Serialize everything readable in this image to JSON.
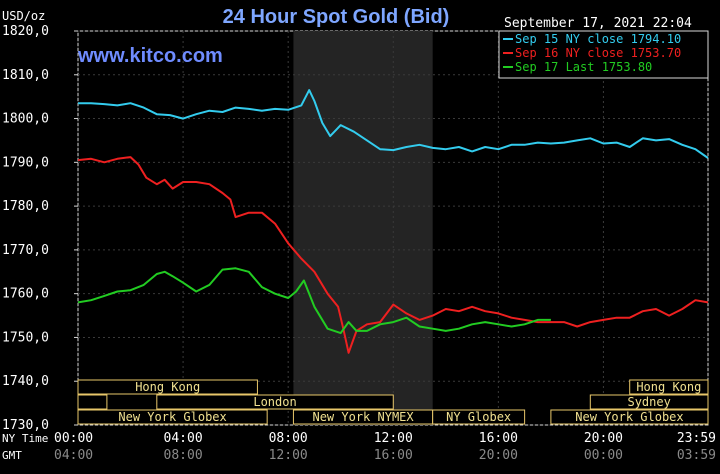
{
  "header": {
    "title": "24 Hour Spot Gold (Bid)",
    "unit": "USD/oz",
    "timestamp": "September 17, 2021 22:04",
    "watermark": "www.kitco.com"
  },
  "legend": [
    {
      "label": "Sep 15 NY close 1794.10",
      "color": "#33ccee"
    },
    {
      "label": "Sep 16 NY close 1753.70",
      "color": "#ee2020"
    },
    {
      "label": "Sep 17 Last 1753.80",
      "color": "#22cc22"
    }
  ],
  "markets": [
    {
      "label": "Hong Kong",
      "row": 0,
      "start": 0.0,
      "end": 6.83
    },
    {
      "label": "Hong Kong",
      "row": 0,
      "start": 21.0,
      "end": 23.98
    },
    {
      "label": "",
      "row": 1,
      "start": 0.0,
      "end": 1.1
    },
    {
      "label": "London",
      "row": 1,
      "start": 3.0,
      "end": 12.0
    },
    {
      "label": "Sydney",
      "row": 1,
      "start": 19.5,
      "end": 23.98
    },
    {
      "label": "New York Globex",
      "row": 2,
      "start": 0.0,
      "end": 7.2
    },
    {
      "label": "New York NYMEX",
      "row": 2,
      "start": 8.2,
      "end": 13.5
    },
    {
      "label": "NY Globex",
      "row": 2,
      "start": 13.5,
      "end": 17.0
    },
    {
      "label": "New York Globex",
      "row": 2,
      "start": 18.0,
      "end": 23.98
    }
  ],
  "axis": {
    "ny_label": "NY Time",
    "gmt_label": "GMT",
    "ny_ticks": [
      "00:00",
      "04:00",
      "08:00",
      "12:00",
      "16:00",
      "20:00",
      "23:59"
    ],
    "gmt_ticks": [
      "04:00",
      "08:00",
      "12:00",
      "16:00",
      "20:00",
      "00:00",
      "03:59"
    ]
  },
  "chart_data": {
    "type": "line",
    "title": "24 Hour Spot Gold (Bid)",
    "ylabel": "USD/oz",
    "xlabel": "NY Time",
    "xlim": [
      0,
      23.98
    ],
    "ylim": [
      1730,
      1820
    ],
    "y_ticks": [
      1730,
      1740,
      1750,
      1760,
      1770,
      1780,
      1790,
      1800,
      1810,
      1820
    ],
    "x_ticks": [
      0,
      4,
      8,
      12,
      16,
      20,
      23.98
    ],
    "shaded_region": [
      8.2,
      13.5
    ],
    "grid": true,
    "legend_position": "top-right",
    "series": [
      {
        "name": "Sep 15 NY close 1794.10",
        "x": [
          0,
          0.5,
          1,
          1.5,
          2,
          2.5,
          3,
          3.5,
          4,
          4.5,
          5,
          5.5,
          6,
          6.5,
          7,
          7.5,
          8,
          8.5,
          8.8,
          9,
          9.3,
          9.6,
          10,
          10.5,
          11,
          11.5,
          12,
          12.5,
          13,
          13.5,
          14,
          14.5,
          15,
          15.5,
          16,
          16.5,
          17,
          17.5,
          18,
          18.5,
          19,
          19.5,
          20,
          20.5,
          21,
          21.5,
          22,
          22.5,
          23,
          23.5,
          23.98
        ],
        "values": [
          1803.5,
          1803.5,
          1803.3,
          1803.0,
          1803.5,
          1802.5,
          1801.0,
          1800.8,
          1800.0,
          1801.0,
          1801.8,
          1801.5,
          1802.5,
          1802.2,
          1801.8,
          1802.2,
          1802.0,
          1803.0,
          1806.5,
          1804.0,
          1799.0,
          1796.0,
          1798.5,
          1797.0,
          1795.0,
          1793.0,
          1792.8,
          1793.5,
          1794.0,
          1793.3,
          1793.0,
          1793.5,
          1792.5,
          1793.5,
          1793.0,
          1794.0,
          1794.0,
          1794.5,
          1794.3,
          1794.5,
          1795.0,
          1795.5,
          1794.3,
          1794.5,
          1793.5,
          1795.5,
          1795.0,
          1795.3,
          1794.0,
          1793.0,
          1791.0
        ]
      },
      {
        "name": "Sep 16 NY close 1753.70",
        "x": [
          0,
          0.5,
          1,
          1.5,
          2,
          2.3,
          2.6,
          3,
          3.3,
          3.6,
          4,
          4.5,
          5,
          5.5,
          5.8,
          6,
          6.5,
          7,
          7.5,
          8,
          8.5,
          9,
          9.5,
          9.9,
          10.1,
          10.3,
          10.6,
          11,
          11.5,
          12,
          12.5,
          13,
          13.5,
          14,
          14.5,
          15,
          15.5,
          16,
          16.5,
          17,
          17.5,
          18,
          18.5,
          19,
          19.5,
          20,
          20.5,
          21,
          21.5,
          22,
          22.5,
          23,
          23.5,
          23.98
        ],
        "values": [
          1790.5,
          1790.8,
          1790.0,
          1790.8,
          1791.2,
          1789.5,
          1786.5,
          1785.0,
          1786.0,
          1784.0,
          1785.5,
          1785.5,
          1785.0,
          1783.0,
          1781.5,
          1777.5,
          1778.5,
          1778.5,
          1776.0,
          1771.5,
          1768.0,
          1765.0,
          1760.0,
          1757.0,
          1752.0,
          1746.5,
          1751.5,
          1753.0,
          1753.5,
          1757.5,
          1755.5,
          1754.0,
          1755.0,
          1756.5,
          1756.0,
          1757.0,
          1756.0,
          1755.5,
          1754.5,
          1754.0,
          1753.5,
          1753.5,
          1753.5,
          1752.5,
          1753.5,
          1754.0,
          1754.5,
          1754.5,
          1756.0,
          1756.5,
          1755.0,
          1756.5,
          1758.5,
          1758.0
        ]
      },
      {
        "name": "Sep 17 Last 1753.80",
        "x": [
          0,
          0.5,
          1,
          1.5,
          2,
          2.5,
          3,
          3.3,
          3.6,
          4,
          4.5,
          5,
          5.5,
          6,
          6.5,
          7,
          7.5,
          8,
          8.3,
          8.6,
          9,
          9.5,
          10,
          10.3,
          10.6,
          11,
          11.5,
          12,
          12.5,
          13,
          13.5,
          14,
          14.5,
          15,
          15.5,
          16,
          16.5,
          17,
          17.5,
          18
        ],
        "values": [
          1758.0,
          1758.5,
          1759.5,
          1760.5,
          1760.8,
          1762.0,
          1764.5,
          1765.0,
          1764.0,
          1762.5,
          1760.5,
          1762.0,
          1765.5,
          1765.8,
          1765.0,
          1761.5,
          1760.0,
          1759.0,
          1760.5,
          1763.0,
          1757.0,
          1752.0,
          1751.0,
          1753.5,
          1751.5,
          1751.5,
          1753.0,
          1753.5,
          1754.5,
          1752.5,
          1752.0,
          1751.5,
          1752.0,
          1753.0,
          1753.5,
          1753.0,
          1752.5,
          1753.0,
          1754.0,
          1754.0
        ]
      }
    ]
  }
}
